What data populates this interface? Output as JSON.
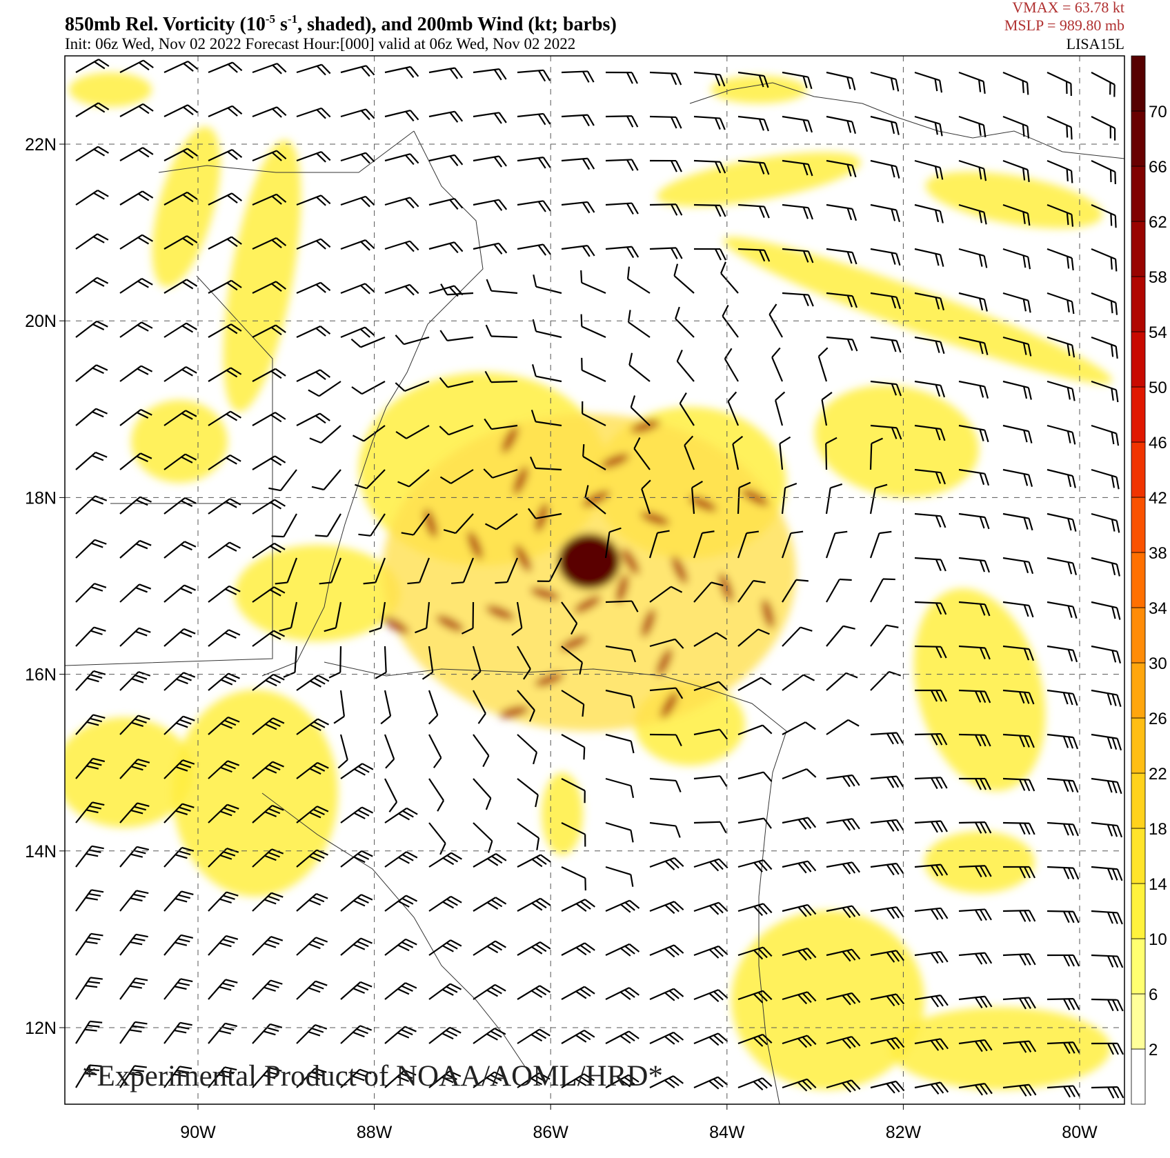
{
  "header": {
    "title_parts": [
      "850mb Rel. Vorticity (10",
      "-5",
      " s",
      "-1",
      ", shaded), and 200mb Wind (kt; barbs)"
    ],
    "subtitle": "Init: 06z Wed, Nov 02 2022  Forecast Hour:[000]  valid at 06z Wed, Nov 02 2022",
    "vmax": "VMAX =   63.78 kt",
    "mslp": "MSLP =  989.80 mb",
    "storm": "LISA15L"
  },
  "map": {
    "lat_labels": [
      "22N",
      "20N",
      "18N",
      "16N",
      "14N",
      "12N"
    ],
    "lon_labels": [
      "90W",
      "88W",
      "86W",
      "84W",
      "82W",
      "80W"
    ],
    "watermark": "*Experimental Product of NOAA/AOML/HRD*"
  },
  "colorbar": {
    "labels": [
      "2",
      "6",
      "10",
      "14",
      "18",
      "22",
      "26",
      "30",
      "34",
      "38",
      "42",
      "46",
      "50",
      "54",
      "58",
      "62",
      "66",
      "70"
    ],
    "colors": [
      "#ffffff",
      "#ffff9a",
      "#ffff70",
      "#fff23c",
      "#ffe42a",
      "#ffd21c",
      "#ffbe14",
      "#ffa60e",
      "#ff8c08",
      "#ff7000",
      "#fa5200",
      "#f03400",
      "#e01800",
      "#c80a00",
      "#b00600",
      "#980400",
      "#800200",
      "#680000",
      "#560000"
    ]
  }
}
